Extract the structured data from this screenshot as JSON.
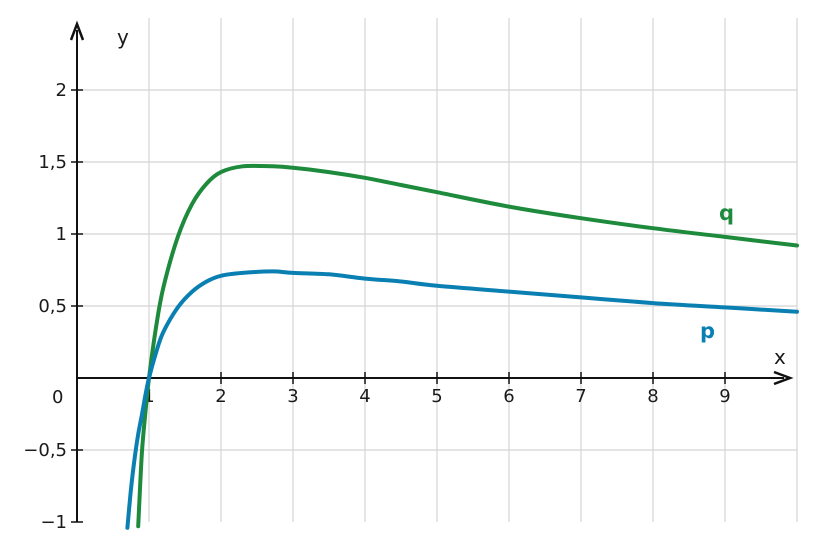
{
  "chart_data": {
    "type": "line",
    "title": "",
    "xlabel": "x",
    "ylabel": "y",
    "xlim": [
      0,
      10
    ],
    "ylim": [
      -1,
      2.4
    ],
    "grid": true,
    "x_ticks": [
      1,
      2,
      3,
      4,
      5,
      6,
      7,
      8,
      9
    ],
    "x_tick_labels": [
      "1",
      "2",
      "3",
      "4",
      "5",
      "6",
      "7",
      "8",
      "9"
    ],
    "y_ticks": [
      -1,
      -0.5,
      0.5,
      1,
      1.5,
      2
    ],
    "y_tick_labels": [
      "−1",
      "−0,5",
      "0,5",
      "1",
      "1,5",
      "2"
    ],
    "origin_label": "0",
    "series": [
      {
        "name": "q",
        "color": "#1e8a3c",
        "x": [
          0.85,
          0.9,
          0.95,
          1.0,
          1.1,
          1.2,
          1.4,
          1.6,
          1.8,
          2.0,
          2.3,
          2.72,
          3.0,
          3.5,
          4.0,
          4.5,
          5.0,
          6.0,
          7.0,
          8.0,
          9.0,
          10.0
        ],
        "y": [
          -1.03,
          -0.53,
          -0.24,
          0.0,
          0.36,
          0.63,
          0.98,
          1.21,
          1.35,
          1.43,
          1.47,
          1.47,
          1.46,
          1.43,
          1.39,
          1.34,
          1.29,
          1.19,
          1.11,
          1.04,
          0.98,
          0.92
        ]
      },
      {
        "name": "p",
        "color": "#0a7fb2",
        "x": [
          0.7,
          0.75,
          0.8,
          0.85,
          0.9,
          0.95,
          1.0,
          1.1,
          1.2,
          1.4,
          1.6,
          1.8,
          2.0,
          2.3,
          2.72,
          3.0,
          3.5,
          4.0,
          4.5,
          5.0,
          6.0,
          7.0,
          8.0,
          9.0,
          10.0
        ],
        "y": [
          -1.04,
          -0.77,
          -0.56,
          -0.39,
          -0.26,
          -0.12,
          0.0,
          0.18,
          0.32,
          0.49,
          0.6,
          0.67,
          0.71,
          0.73,
          0.74,
          0.73,
          0.72,
          0.69,
          0.67,
          0.64,
          0.6,
          0.56,
          0.52,
          0.49,
          0.46
        ]
      }
    ]
  }
}
